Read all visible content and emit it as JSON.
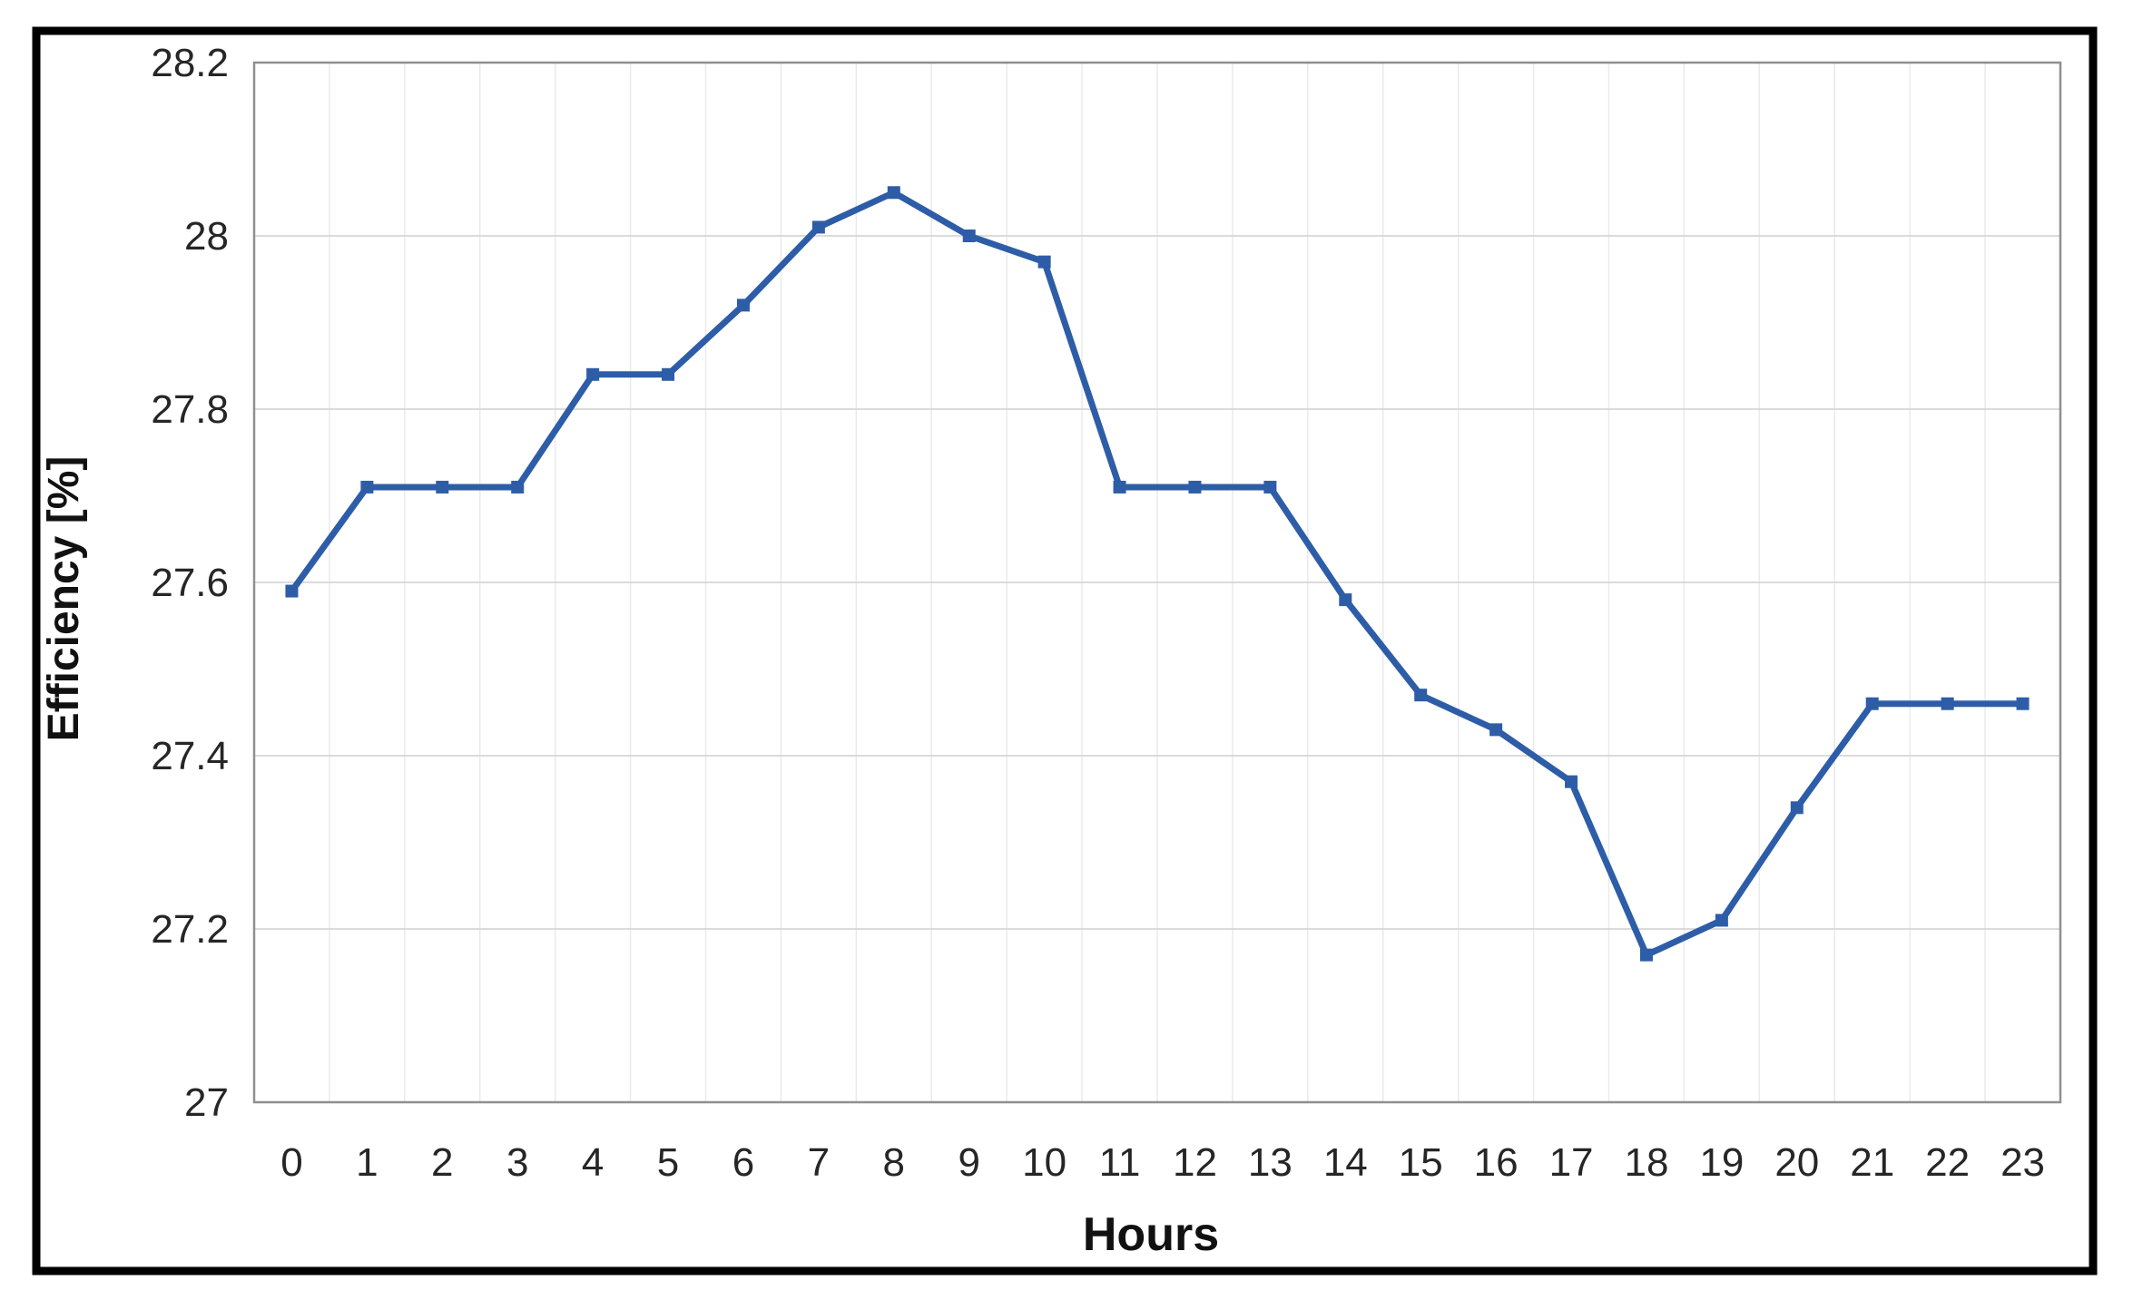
{
  "chart_data": {
    "type": "line",
    "title": "",
    "xlabel": "Hours",
    "ylabel": "Efficiency [%]",
    "x": [
      0,
      1,
      2,
      3,
      4,
      5,
      6,
      7,
      8,
      9,
      10,
      11,
      12,
      13,
      14,
      15,
      16,
      17,
      18,
      19,
      20,
      21,
      22,
      23
    ],
    "values": [
      27.59,
      27.71,
      27.71,
      27.71,
      27.84,
      27.84,
      27.92,
      28.01,
      28.05,
      28.0,
      27.97,
      27.71,
      27.71,
      27.71,
      27.58,
      27.47,
      27.43,
      27.37,
      27.17,
      27.21,
      27.34,
      27.46,
      27.46,
      27.46
    ],
    "ylim": [
      27,
      28.2
    ],
    "yticks": [
      27,
      27.2,
      27.4,
      27.6,
      27.8,
      28,
      28.2
    ],
    "grid": "both",
    "legend": "none",
    "series_name": "Efficiency",
    "colors": {
      "line": "#2E5DA8",
      "marker": "#2E5DA8",
      "h_grid": "#D6D6D6",
      "v_grid": "#EAEAEA",
      "plot_border": "#8F8F8F",
      "figure_border": "#000000",
      "tick_text": "#262626",
      "title_text": "#111111"
    }
  }
}
